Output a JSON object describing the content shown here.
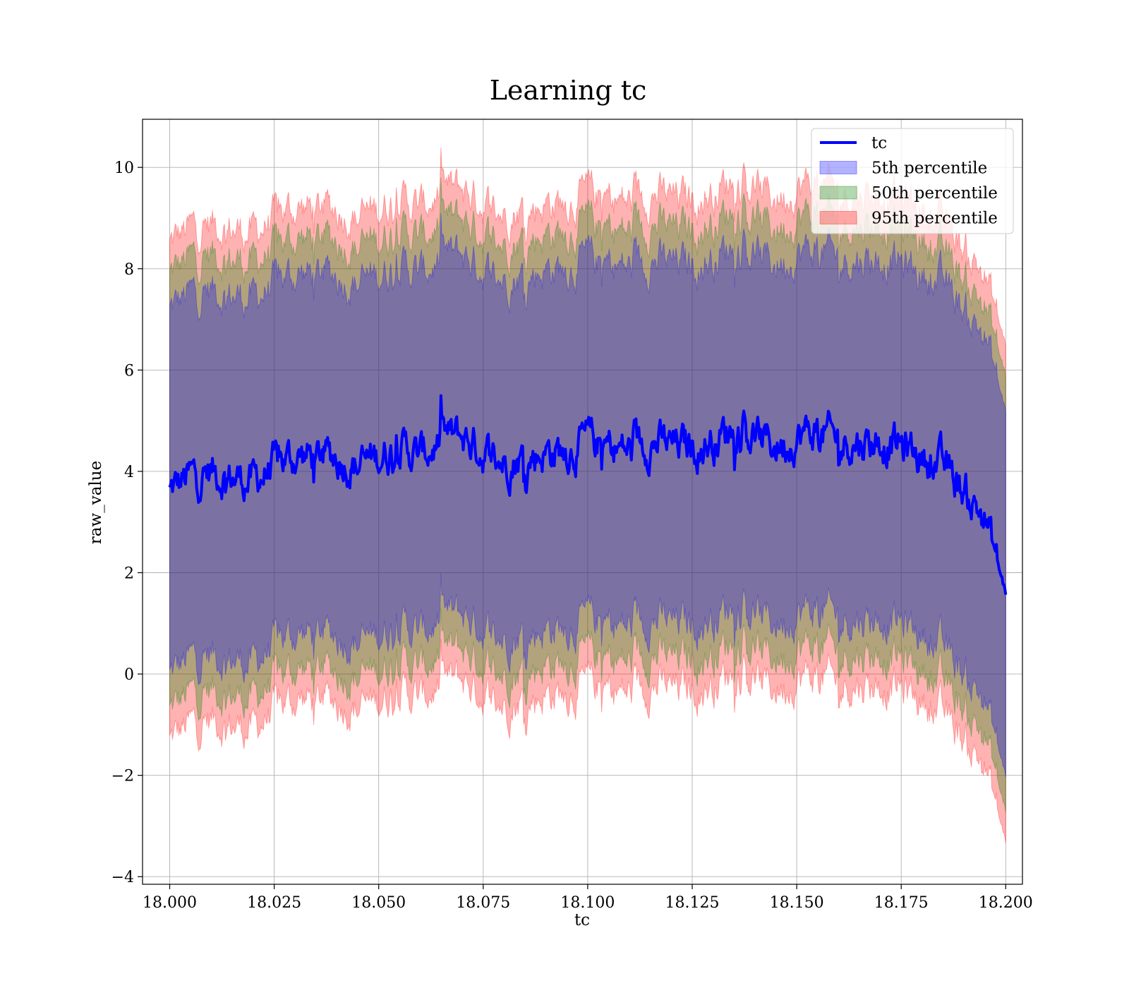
{
  "chart_data": {
    "type": "line",
    "title": "Learning tc",
    "xlabel": "tc",
    "ylabel": "raw_value",
    "xlim": [
      17.9935,
      18.204
    ],
    "ylim": [
      -4.15,
      10.95
    ],
    "x_ticks": [
      18.0,
      18.025,
      18.05,
      18.075,
      18.1,
      18.125,
      18.15,
      18.175,
      18.2
    ],
    "x_tick_labels": [
      "18.000",
      "18.025",
      "18.050",
      "18.075",
      "18.100",
      "18.125",
      "18.150",
      "18.175",
      "18.200"
    ],
    "y_ticks": [
      -4,
      -2,
      0,
      2,
      4,
      6,
      8,
      10
    ],
    "y_tick_labels": [
      "−4",
      "−2",
      "0",
      "2",
      "4",
      "6",
      "8",
      "10"
    ],
    "grid": true,
    "legend_position": "top-right",
    "x": [
      18.0,
      18.005,
      18.01,
      18.015,
      18.02,
      18.025,
      18.03,
      18.035,
      18.04,
      18.045,
      18.05,
      18.055,
      18.06,
      18.065,
      18.07,
      18.075,
      18.08,
      18.085,
      18.09,
      18.095,
      18.1,
      18.105,
      18.11,
      18.115,
      18.12,
      18.125,
      18.13,
      18.135,
      18.14,
      18.145,
      18.15,
      18.155,
      18.16,
      18.165,
      18.17,
      18.175,
      18.18,
      18.185,
      18.19,
      18.195,
      18.2
    ],
    "series": [
      {
        "name": "tc",
        "kind": "line",
        "color": "#0000ff",
        "values": [
          3.6,
          3.9,
          4.0,
          3.9,
          3.8,
          4.1,
          4.3,
          4.3,
          4.3,
          4.1,
          4.3,
          4.5,
          4.3,
          4.6,
          4.7,
          4.4,
          4.2,
          4.3,
          4.4,
          4.4,
          4.6,
          4.5,
          4.4,
          4.6,
          4.5,
          4.5,
          4.6,
          4.9,
          4.7,
          4.5,
          4.7,
          4.8,
          4.6,
          4.6,
          4.6,
          4.5,
          4.3,
          4.1,
          3.6,
          3.1,
          1.6
        ]
      },
      {
        "name": "5th percentile",
        "kind": "band",
        "color": "#0000ff",
        "lower": [
          0.0,
          0.3,
          0.4,
          0.3,
          0.2,
          0.6,
          0.8,
          0.8,
          0.8,
          0.6,
          0.8,
          1.0,
          0.8,
          1.1,
          1.2,
          0.9,
          0.7,
          0.8,
          0.9,
          0.9,
          1.1,
          1.0,
          0.9,
          1.1,
          1.0,
          1.0,
          1.1,
          1.4,
          1.2,
          1.0,
          1.2,
          1.3,
          1.1,
          1.1,
          1.1,
          1.0,
          0.8,
          0.5,
          0.0,
          -0.5,
          -2.0
        ],
        "upper": [
          7.2,
          7.5,
          7.6,
          7.5,
          7.4,
          7.7,
          7.9,
          7.9,
          7.9,
          7.7,
          7.9,
          8.1,
          7.9,
          8.2,
          8.3,
          8.0,
          7.8,
          7.9,
          8.0,
          8.0,
          8.2,
          8.1,
          8.0,
          8.2,
          8.1,
          8.1,
          8.2,
          8.5,
          8.3,
          8.1,
          8.3,
          8.4,
          8.2,
          8.2,
          8.2,
          8.1,
          7.9,
          7.7,
          7.2,
          6.7,
          5.2
        ]
      },
      {
        "name": "50th percentile",
        "kind": "band",
        "color": "#008000",
        "lower": [
          -0.7,
          -0.4,
          -0.3,
          -0.4,
          -0.5,
          -0.1,
          0.1,
          0.1,
          0.1,
          -0.1,
          0.1,
          0.3,
          0.1,
          0.4,
          0.5,
          0.2,
          0.0,
          0.1,
          0.2,
          0.2,
          0.4,
          0.3,
          0.2,
          0.4,
          0.3,
          0.3,
          0.4,
          0.7,
          0.5,
          0.3,
          0.5,
          0.6,
          0.4,
          0.4,
          0.4,
          0.3,
          0.1,
          -0.2,
          -0.7,
          -1.2,
          -2.7
        ],
        "upper": [
          7.9,
          8.2,
          8.3,
          8.2,
          8.1,
          8.4,
          8.6,
          8.6,
          8.6,
          8.4,
          8.6,
          8.8,
          8.6,
          8.9,
          9.0,
          8.7,
          8.5,
          8.6,
          8.7,
          8.7,
          8.9,
          8.8,
          8.7,
          8.9,
          8.8,
          8.8,
          8.9,
          9.2,
          9.0,
          8.8,
          9.0,
          9.1,
          8.9,
          8.9,
          8.9,
          8.8,
          8.6,
          8.3,
          7.8,
          7.3,
          5.9
        ]
      },
      {
        "name": "95th percentile",
        "kind": "band",
        "color": "#ff0000",
        "lower": [
          -1.3,
          -1.0,
          -0.9,
          -1.0,
          -1.1,
          -0.7,
          -0.5,
          -0.5,
          -0.5,
          -0.7,
          -0.5,
          -0.3,
          -0.5,
          -0.2,
          -0.1,
          -0.4,
          -0.6,
          -0.5,
          -0.4,
          -0.4,
          -0.2,
          -0.3,
          -0.4,
          -0.2,
          -0.3,
          -0.3,
          -0.2,
          0.1,
          -0.1,
          -0.3,
          -0.1,
          0.0,
          -0.2,
          -0.2,
          -0.2,
          -0.3,
          -0.5,
          -0.8,
          -1.3,
          -1.8,
          -3.3
        ],
        "upper": [
          8.5,
          8.8,
          8.9,
          8.8,
          8.7,
          9.0,
          9.2,
          9.2,
          9.2,
          9.0,
          9.2,
          9.4,
          9.2,
          9.5,
          9.6,
          9.3,
          9.1,
          9.2,
          9.3,
          9.3,
          9.5,
          9.4,
          9.3,
          9.5,
          9.4,
          9.4,
          9.5,
          9.8,
          9.6,
          9.4,
          9.6,
          9.7,
          9.5,
          9.5,
          9.5,
          9.4,
          9.2,
          8.9,
          8.4,
          7.9,
          6.5
        ]
      }
    ]
  }
}
